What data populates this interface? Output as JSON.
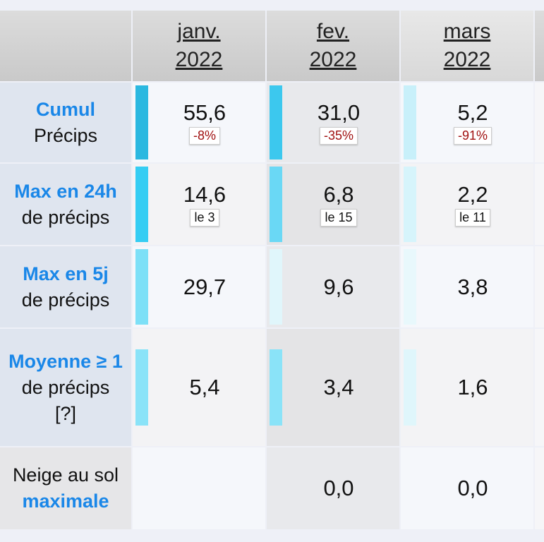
{
  "columns": [
    {
      "month": "janv.",
      "year": "2022"
    },
    {
      "month": "fev.",
      "year": "2022"
    },
    {
      "month": "mars",
      "year": "2022"
    }
  ],
  "rows": [
    {
      "lines": [
        {
          "text": "Cumul",
          "bold": true
        },
        {
          "text": "Précips",
          "bold": false
        }
      ],
      "cells": [
        {
          "value": "55,6",
          "note": "-8%",
          "note_color": "#a01010",
          "bar_color": "#2bb8e0"
        },
        {
          "value": "31,0",
          "note": "-35%",
          "note_color": "#a01010",
          "bar_color": "#3cc8ee"
        },
        {
          "value": "5,2",
          "note": "-91%",
          "note_color": "#a01010",
          "bar_color": "#c8f0fa"
        }
      ]
    },
    {
      "lines": [
        {
          "text": "Max en 24h",
          "bold": true
        },
        {
          "text": "de précips",
          "bold": false
        }
      ],
      "cells": [
        {
          "value": "14,6",
          "note": "le 3",
          "note_color": "#111111",
          "bar_color": "#35cdf3"
        },
        {
          "value": "6,8",
          "note": "le 15",
          "note_color": "#111111",
          "bar_color": "#6ad8f5"
        },
        {
          "value": "2,2",
          "note": "le 11",
          "note_color": "#111111",
          "bar_color": "#d6f4fb"
        }
      ]
    },
    {
      "lines": [
        {
          "text": "Max en 5j",
          "bold": true
        },
        {
          "text": "de précips",
          "bold": false
        }
      ],
      "cells": [
        {
          "value": "29,7",
          "note": null,
          "note_color": null,
          "bar_color": "#7de0f7"
        },
        {
          "value": "9,6",
          "note": null,
          "note_color": null,
          "bar_color": "#e0f6fb"
        },
        {
          "value": "3,8",
          "note": null,
          "note_color": null,
          "bar_color": "#e8f8fc"
        }
      ]
    },
    {
      "lines": [
        {
          "text": "Moyenne ≥ 1",
          "bold": true
        },
        {
          "text": "de précips",
          "bold": false
        },
        {
          "text": "[?]",
          "bold": false
        }
      ],
      "cells": [
        {
          "value": "5,4",
          "note": null,
          "note_color": null,
          "bar_color": "#8ae3f8"
        },
        {
          "value": "3,4",
          "note": null,
          "note_color": null,
          "bar_color": "#8ae3f8"
        },
        {
          "value": "1,6",
          "note": null,
          "note_color": null,
          "bar_color": "#dff6fb"
        }
      ]
    },
    {
      "lines": [
        {
          "text": "Neige au sol",
          "bold": false
        },
        {
          "text": "maximale",
          "bold": true
        }
      ],
      "cells": [
        {
          "value": null,
          "note": null,
          "note_color": null,
          "bar_color": null
        },
        {
          "value": "0,0",
          "note": null,
          "note_color": null,
          "bar_color": null
        },
        {
          "value": "0,0",
          "note": null,
          "note_color": null,
          "bar_color": null
        }
      ]
    }
  ]
}
